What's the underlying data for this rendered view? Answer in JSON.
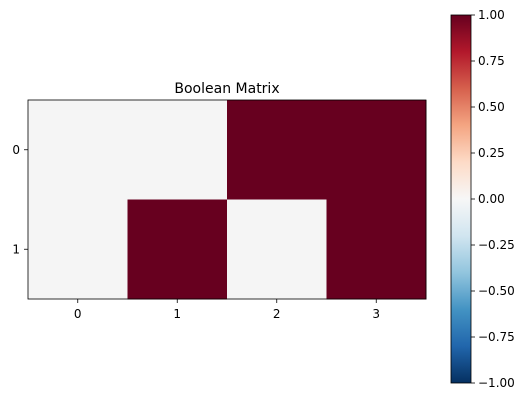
{
  "chart_data": {
    "type": "heatmap",
    "title": "Boolean Matrix",
    "xlabel": "",
    "ylabel": "",
    "x_ticks": [
      "0",
      "1",
      "2",
      "3"
    ],
    "y_ticks": [
      "0",
      "1"
    ],
    "matrix": [
      [
        0,
        0,
        1,
        1
      ],
      [
        0,
        1,
        0,
        1
      ]
    ],
    "colormap": "RdBu_r",
    "color_scale": {
      "vmin": -1.0,
      "vmax": 1.0
    },
    "colorbar_ticks": [
      "1.00",
      "0.75",
      "0.50",
      "0.25",
      "0.00",
      "−0.25",
      "−0.50",
      "−0.75",
      "−1.00"
    ],
    "colorbar_tick_values": [
      1.0,
      0.75,
      0.5,
      0.25,
      0.0,
      -0.25,
      -0.5,
      -0.75,
      -1.0
    ],
    "colors": {
      "value_0": "#f5f5f5",
      "value_1": "#67001f"
    },
    "grid": false,
    "colorbar_position": "right"
  }
}
